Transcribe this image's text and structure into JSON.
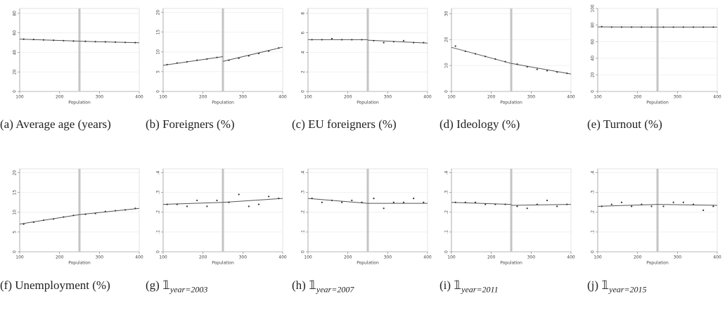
{
  "chart_data": [
    {
      "type": "scatter",
      "label": "(a)",
      "caption": "Average age (years)",
      "xlabel": "Population",
      "xlim": [
        100,
        400
      ],
      "xticks": [
        100,
        200,
        300,
        400
      ],
      "ylim": [
        0,
        85
      ],
      "yticks": [
        0,
        20,
        40,
        60,
        80
      ],
      "cutoff": 250,
      "x": [
        110,
        135,
        160,
        185,
        210,
        235,
        265,
        290,
        315,
        340,
        365,
        390
      ],
      "values": [
        53.5,
        53.2,
        52.8,
        52.4,
        52,
        51.6,
        51.3,
        51,
        50.8,
        50.5,
        50.2,
        50
      ],
      "fit": [
        {
          "x": [
            100,
            250
          ],
          "values": [
            53.6,
            51.5
          ]
        },
        {
          "x": [
            250,
            400
          ],
          "values": [
            51.4,
            49.9
          ]
        }
      ]
    },
    {
      "type": "scatter",
      "label": "(b)",
      "caption": "Foreigners (%)",
      "xlabel": "Population",
      "xlim": [
        100,
        400
      ],
      "xticks": [
        100,
        200,
        300,
        400
      ],
      "ylim": [
        0,
        21
      ],
      "yticks": [
        0,
        5,
        10,
        15,
        20
      ],
      "cutoff": 250,
      "x": [
        110,
        135,
        160,
        185,
        210,
        235,
        265,
        290,
        315,
        340,
        365,
        390
      ],
      "values": [
        6.8,
        7.2,
        7.5,
        7.9,
        8.2,
        8.6,
        7.9,
        8.4,
        9,
        9.6,
        10.2,
        11
      ],
      "fit": [
        {
          "x": [
            100,
            250
          ],
          "values": [
            6.6,
            8.8
          ]
        },
        {
          "x": [
            250,
            400
          ],
          "values": [
            7.6,
            11.2
          ]
        }
      ]
    },
    {
      "type": "scatter",
      "label": "(c)",
      "caption": "EU foreigners (%)",
      "xlabel": "Population",
      "xlim": [
        100,
        400
      ],
      "xticks": [
        100,
        200,
        300,
        400
      ],
      "ylim": [
        0,
        8.5
      ],
      "yticks": [
        0,
        2,
        4,
        6,
        8
      ],
      "cutoff": 250,
      "x": [
        110,
        135,
        160,
        185,
        210,
        235,
        265,
        290,
        315,
        340,
        365,
        390
      ],
      "values": [
        5.3,
        5.3,
        5.4,
        5.3,
        5.3,
        5.3,
        5.2,
        5,
        5.1,
        5.2,
        5,
        5
      ],
      "fit": [
        {
          "x": [
            100,
            250
          ],
          "values": [
            5.3,
            5.3
          ]
        },
        {
          "x": [
            250,
            400
          ],
          "values": [
            5.25,
            4.95
          ]
        }
      ]
    },
    {
      "type": "scatter",
      "label": "(d)",
      "caption": "Ideology (%)",
      "xlabel": "Population",
      "xlim": [
        100,
        400
      ],
      "xticks": [
        100,
        200,
        300,
        400
      ],
      "ylim": [
        0,
        32
      ],
      "yticks": [
        0,
        10,
        20,
        30
      ],
      "cutoff": 250,
      "x": [
        110,
        135,
        160,
        185,
        210,
        235,
        265,
        290,
        315,
        340,
        365,
        390
      ],
      "values": [
        17.5,
        15.5,
        14.5,
        13.5,
        12.5,
        11.5,
        10.5,
        9.5,
        8.5,
        8,
        7.5,
        7
      ],
      "fit": [
        {
          "x": [
            100,
            250
          ],
          "values": [
            17,
            10.8
          ]
        },
        {
          "x": [
            250,
            400
          ],
          "values": [
            10.8,
            6.7
          ]
        }
      ]
    },
    {
      "type": "scatter",
      "label": "(e)",
      "caption": "Turnout (%)",
      "xlabel": "Population",
      "xlim": [
        100,
        400
      ],
      "xticks": [
        100,
        200,
        300,
        400
      ],
      "ylim": [
        0,
        100
      ],
      "yticks": [
        0,
        20,
        40,
        60,
        80,
        100
      ],
      "cutoff": 250,
      "x": [
        110,
        135,
        160,
        185,
        210,
        235,
        265,
        290,
        315,
        340,
        365,
        390
      ],
      "values": [
        78,
        77.5,
        77.5,
        77.5,
        77.5,
        77.5,
        77.5,
        77.5,
        77.5,
        77.5,
        77.5,
        77.5
      ],
      "fit": [
        {
          "x": [
            100,
            250
          ],
          "values": [
            77.8,
            77.5
          ]
        },
        {
          "x": [
            250,
            400
          ],
          "values": [
            77.5,
            77.5
          ]
        }
      ]
    },
    {
      "type": "scatter",
      "label": "(f)",
      "caption": "Unemployment (%)",
      "xlabel": "Population",
      "xlim": [
        100,
        400
      ],
      "xticks": [
        100,
        200,
        300,
        400
      ],
      "ylim": [
        0,
        21
      ],
      "yticks": [
        0,
        5,
        10,
        15,
        20
      ],
      "cutoff": 250,
      "x": [
        110,
        135,
        160,
        185,
        210,
        235,
        265,
        290,
        315,
        340,
        365,
        390
      ],
      "values": [
        7,
        7.5,
        8,
        8.3,
        8.8,
        9.2,
        9.5,
        9.7,
        10.2,
        10.4,
        10.6,
        11
      ],
      "fit": [
        {
          "x": [
            100,
            250
          ],
          "values": [
            7,
            9.4
          ]
        },
        {
          "x": [
            250,
            400
          ],
          "values": [
            9.4,
            11
          ]
        }
      ]
    },
    {
      "type": "scatter",
      "label": "(g)",
      "indicator": "𝟙",
      "subscript": "year=2003",
      "xlabel": "Population",
      "xlim": [
        100,
        400
      ],
      "xticks": [
        100,
        200,
        300,
        400
      ],
      "ylim": [
        0,
        0.42
      ],
      "yticks": [
        0,
        {
          "value": 0.1,
          "label": ".1"
        },
        {
          "value": 0.2,
          "label": ".2"
        },
        {
          "value": 0.3,
          "label": ".3"
        },
        {
          "value": 0.4,
          "label": ".4"
        }
      ],
      "cutoff": 250,
      "x": [
        110,
        135,
        160,
        185,
        210,
        235,
        265,
        290,
        315,
        340,
        365,
        390
      ],
      "values": [
        0.24,
        0.24,
        0.23,
        0.26,
        0.23,
        0.26,
        0.25,
        0.29,
        0.23,
        0.24,
        0.28,
        0.27
      ],
      "fit": [
        {
          "x": [
            100,
            250
          ],
          "values": [
            0.24,
            0.25
          ]
        },
        {
          "x": [
            250,
            400
          ],
          "values": [
            0.25,
            0.27
          ]
        }
      ]
    },
    {
      "type": "scatter",
      "label": "(h)",
      "indicator": "𝟙",
      "subscript": "year=2007",
      "xlabel": "Population",
      "xlim": [
        100,
        400
      ],
      "xticks": [
        100,
        200,
        300,
        400
      ],
      "ylim": [
        0,
        0.42
      ],
      "yticks": [
        0,
        {
          "value": 0.1,
          "label": ".1"
        },
        {
          "value": 0.2,
          "label": ".2"
        },
        {
          "value": 0.3,
          "label": ".3"
        },
        {
          "value": 0.4,
          "label": ".4"
        }
      ],
      "cutoff": 250,
      "x": [
        110,
        135,
        160,
        185,
        210,
        235,
        265,
        290,
        315,
        340,
        365,
        390
      ],
      "values": [
        0.27,
        0.25,
        0.26,
        0.25,
        0.26,
        0.25,
        0.27,
        0.22,
        0.25,
        0.25,
        0.27,
        0.25
      ],
      "fit": [
        {
          "x": [
            100,
            250
          ],
          "values": [
            0.27,
            0.245
          ]
        },
        {
          "x": [
            250,
            400
          ],
          "values": [
            0.245,
            0.245
          ]
        }
      ]
    },
    {
      "type": "scatter",
      "label": "(i)",
      "indicator": "𝟙",
      "subscript": "year=2011",
      "xlabel": "Population",
      "xlim": [
        100,
        400
      ],
      "xticks": [
        100,
        200,
        300,
        400
      ],
      "ylim": [
        0,
        0.42
      ],
      "yticks": [
        0,
        {
          "value": 0.1,
          "label": ".1"
        },
        {
          "value": 0.2,
          "label": ".2"
        },
        {
          "value": 0.3,
          "label": ".3"
        },
        {
          "value": 0.4,
          "label": ".4"
        }
      ],
      "cutoff": 250,
      "x": [
        110,
        135,
        160,
        185,
        210,
        235,
        265,
        290,
        315,
        340,
        365,
        390
      ],
      "values": [
        0.25,
        0.25,
        0.25,
        0.24,
        0.24,
        0.24,
        0.23,
        0.22,
        0.24,
        0.26,
        0.23,
        0.24
      ],
      "fit": [
        {
          "x": [
            100,
            250
          ],
          "values": [
            0.25,
            0.24
          ]
        },
        {
          "x": [
            250,
            400
          ],
          "values": [
            0.235,
            0.24
          ]
        }
      ]
    },
    {
      "type": "scatter",
      "label": "(j)",
      "indicator": "𝟙",
      "subscript": "year=2015",
      "xlabel": "Population",
      "xlim": [
        100,
        400
      ],
      "xticks": [
        100,
        200,
        300,
        400
      ],
      "ylim": [
        0,
        0.42
      ],
      "yticks": [
        0,
        {
          "value": 0.1,
          "label": ".1"
        },
        {
          "value": 0.2,
          "label": ".2"
        },
        {
          "value": 0.3,
          "label": ".3"
        },
        {
          "value": 0.4,
          "label": ".4"
        }
      ],
      "cutoff": 250,
      "x": [
        110,
        135,
        160,
        185,
        210,
        235,
        265,
        290,
        315,
        340,
        365,
        390
      ],
      "values": [
        0.23,
        0.24,
        0.25,
        0.23,
        0.24,
        0.23,
        0.23,
        0.25,
        0.25,
        0.24,
        0.21,
        0.23
      ],
      "fit": [
        {
          "x": [
            100,
            250
          ],
          "values": [
            0.23,
            0.24
          ]
        },
        {
          "x": [
            250,
            400
          ],
          "values": [
            0.24,
            0.235
          ]
        }
      ]
    }
  ]
}
